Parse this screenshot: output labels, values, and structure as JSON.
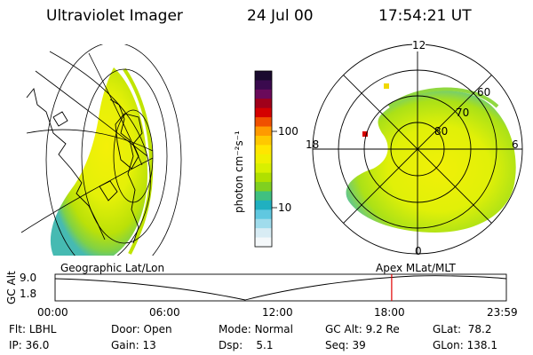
{
  "header": {
    "instrument": "Ultraviolet Imager",
    "date": "24 Jul 00",
    "time": "17:54:21 UT"
  },
  "colorbar": {
    "label": "photon cm⁻²s⁻¹",
    "ticks": [
      "100",
      "10"
    ],
    "colors": [
      "#1a0a2e",
      "#3a0a4e",
      "#6a0a5a",
      "#a0001a",
      "#d40000",
      "#f05000",
      "#ff9a00",
      "#ffc800",
      "#ffe600",
      "#f0f000",
      "#d8f000",
      "#b0e000",
      "#80d020",
      "#40c080",
      "#20b0c0",
      "#60c8e0",
      "#a0dcec",
      "#d8ecf4",
      "#f4f8fa"
    ]
  },
  "polar": {
    "mlt_labels": [
      "12",
      "18",
      "6",
      "0"
    ],
    "lat_labels": [
      "60",
      "70",
      "80"
    ]
  },
  "timeline": {
    "left_label": "Geographic Lat/Lon",
    "right_label": "Apex MLat/MLT",
    "axis_title": "GC Alt",
    "alt_max": "9.0",
    "alt_min": "1.8",
    "time_ticks": [
      "00:00",
      "06:00",
      "12:00",
      "18:00",
      "23:59"
    ],
    "current_time_hours": 17.9
  },
  "info": {
    "flt_label": "Flt:",
    "flt_value": "LBHL",
    "ip_label": "IP:",
    "ip_value": "36.0",
    "door_label": "Door:",
    "door_value": "Open",
    "gain_label": "Gain:",
    "gain_value": "13",
    "mode_label": "Mode:",
    "mode_value": "Normal",
    "dsp_label": "Dsp:",
    "dsp_value": "5.1",
    "gcalt_label": "GC Alt:",
    "gcalt_value": "9.2 Re",
    "seq_label": "Seq:",
    "seq_value": "39",
    "glat_label": "GLat:",
    "glat_value": "78.2",
    "glon_label": "GLon:",
    "glon_value": "138.1"
  }
}
